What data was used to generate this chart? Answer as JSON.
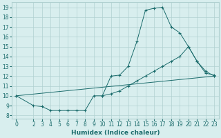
{
  "line1_x": [
    10,
    11,
    12,
    13,
    14,
    15,
    16,
    17,
    18,
    19,
    20,
    21,
    22,
    23
  ],
  "line1_y": [
    10.0,
    12.0,
    12.1,
    13.0,
    15.5,
    18.7,
    18.9,
    19.0,
    17.0,
    16.4,
    15.0,
    13.5,
    12.3,
    12.1
  ],
  "line2_x": [
    0,
    2,
    3,
    4,
    5,
    6,
    7,
    8,
    9,
    10,
    11,
    12,
    13,
    14,
    15,
    16,
    17,
    18,
    19,
    20,
    21,
    22,
    23
  ],
  "line2_y": [
    10.0,
    9.0,
    8.9,
    8.5,
    8.5,
    8.5,
    8.5,
    8.5,
    10.0,
    10.0,
    10.2,
    10.5,
    11.0,
    11.5,
    12.0,
    12.5,
    13.0,
    13.5,
    14.0,
    15.0,
    13.5,
    12.5,
    12.0
  ],
  "line3_x": [
    0,
    23
  ],
  "line3_y": [
    10.0,
    12.0
  ],
  "line_color": "#1a6b6b",
  "bg_color": "#d8eeee",
  "grid_color": "#b0d0d0",
  "xlabel": "Humidex (Indice chaleur)",
  "xlim": [
    0,
    23
  ],
  "ylim": [
    8,
    19
  ],
  "yticks": [
    8,
    9,
    10,
    11,
    12,
    13,
    14,
    15,
    16,
    17,
    18,
    19
  ],
  "xticks": [
    0,
    2,
    3,
    4,
    5,
    6,
    7,
    8,
    9,
    10,
    11,
    12,
    13,
    14,
    15,
    16,
    17,
    18,
    19,
    20,
    21,
    22,
    23
  ],
  "tick_fontsize": 5.5,
  "xlabel_fontsize": 6.5,
  "marker": "+"
}
